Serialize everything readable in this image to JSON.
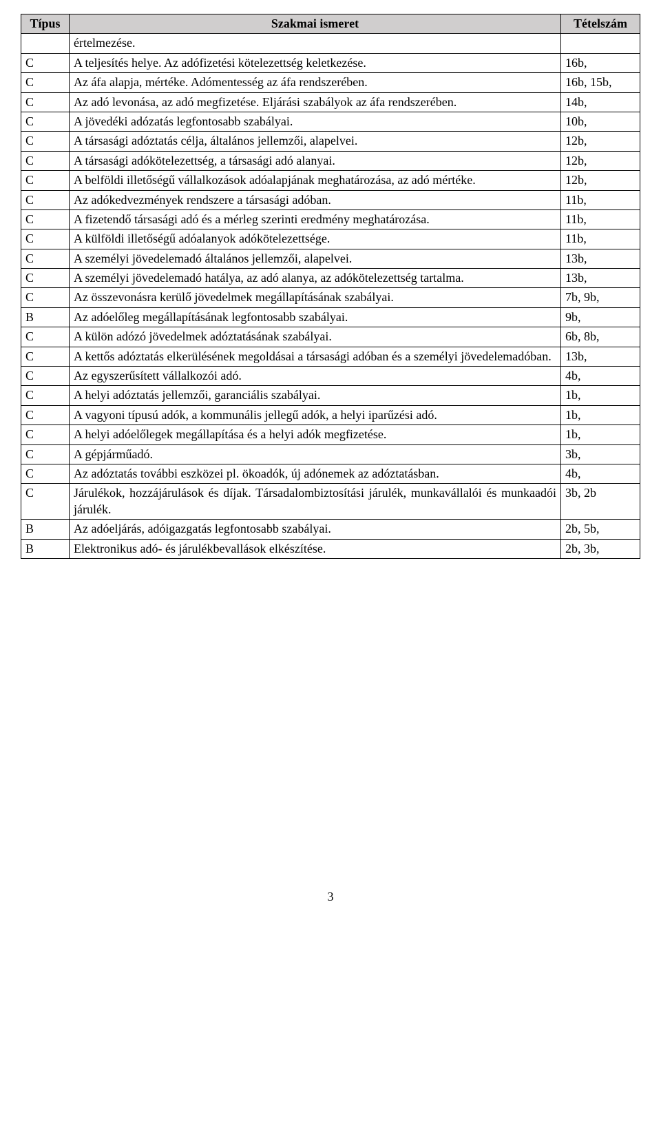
{
  "header": {
    "col1": "Típus",
    "col2": "Szakmai ismeret",
    "col3": "Tételszám",
    "background_color": "#d0cece"
  },
  "rows": [
    {
      "t": "",
      "s": "értelmezése.",
      "n": ""
    },
    {
      "t": "C",
      "s": "A teljesítés helye. Az adófizetési kötelezettség keletkezése.",
      "n": "16b,"
    },
    {
      "t": "C",
      "s": "Az áfa alapja, mértéke. Adómentesség az áfa rendszerében.",
      "n": "16b, 15b,"
    },
    {
      "t": "C",
      "s": "Az adó levonása, az adó megfizetése. Eljárási szabályok az áfa rendszerében.",
      "n": "14b,",
      "justify": true
    },
    {
      "t": "C",
      "s": "A jövedéki adózatás legfontosabb szabályai.",
      "n": "10b,"
    },
    {
      "t": "C",
      "s": "A társasági adóztatás célja, általános jellemzői, alapelvei.",
      "n": "12b,"
    },
    {
      "t": "C",
      "s": "A társasági adókötelezettség, a társasági adó alanyai.",
      "n": "12b,"
    },
    {
      "t": "C",
      "s": "A belföldi illetőségű vállalkozások adóalapjának meghatározása, az adó mértéke.",
      "n": "12b,",
      "justify": true
    },
    {
      "t": "C",
      "s": "Az adókedvezmények rendszere a társasági adóban.",
      "n": "11b,"
    },
    {
      "t": "C",
      "s": "A fizetendő társasági adó és a mérleg szerinti eredmény meghatározása.",
      "n": "11b,",
      "justify": true
    },
    {
      "t": "C",
      "s": "A külföldi illetőségű adóalanyok adókötelezettsége.",
      "n": "11b,"
    },
    {
      "t": "C",
      "s": "A személyi jövedelemadó általános jellemzői, alapelvei.",
      "n": "13b,"
    },
    {
      "t": "C",
      "s": "A személyi jövedelemadó hatálya, az adó alanya, az adókötelezettség tartalma.",
      "n": "13b,",
      "justify": true
    },
    {
      "t": "C",
      "s": "Az összevonásra kerülő jövedelmek megállapításának szabályai.",
      "n": "7b, 9b,"
    },
    {
      "t": "B",
      "s": "Az adóelőleg megállapításának legfontosabb szabályai.",
      "n": "9b,"
    },
    {
      "t": "C",
      "s": "A külön adózó jövedelmek adóztatásának szabályai.",
      "n": "6b, 8b,"
    },
    {
      "t": "C",
      "s": "A kettős adóztatás elkerülésének megoldásai a társasági adóban és a személyi jövedelemadóban.",
      "n": "13b,",
      "justify": true
    },
    {
      "t": "C",
      "s": "Az egyszerűsített vállalkozói adó.",
      "n": "4b,"
    },
    {
      "t": "C",
      "s": "A helyi adóztatás jellemzői, garanciális szabályai.",
      "n": "1b,"
    },
    {
      "t": "C",
      "s": "A vagyoni típusú adók, a kommunális jellegű adók, a helyi iparűzési adó.",
      "n": "1b,",
      "justify": true
    },
    {
      "t": "C",
      "s": "A helyi adóelőlegek megállapítása és a helyi adók megfizetése.",
      "n": "1b,"
    },
    {
      "t": "C",
      "s": "A gépjárműadó.",
      "n": "3b,"
    },
    {
      "t": "C",
      "s": "Az adóztatás további eszközei pl. ökoadók, új adónemek az adóztatásban.",
      "n": "4b,",
      "justify": true
    },
    {
      "t": "C",
      "s": "Járulékok, hozzájárulások és díjak. Társadalombiztosítási járulék, munkavállalói és munkaadói járulék.",
      "n": "3b, 2b",
      "justify": true
    },
    {
      "t": "B",
      "s": "Az adóeljárás, adóigazgatás legfontosabb szabályai.",
      "n": "2b, 5b,"
    },
    {
      "t": "B",
      "s": "Elektronikus adó- és járulékbevallások elkészítése.",
      "n": "2b, 3b,"
    }
  ],
  "page_number": "3",
  "style": {
    "font_family": "Times New Roman",
    "font_size_pt": 14,
    "border_color": "#000000",
    "background_color": "#ffffff"
  }
}
